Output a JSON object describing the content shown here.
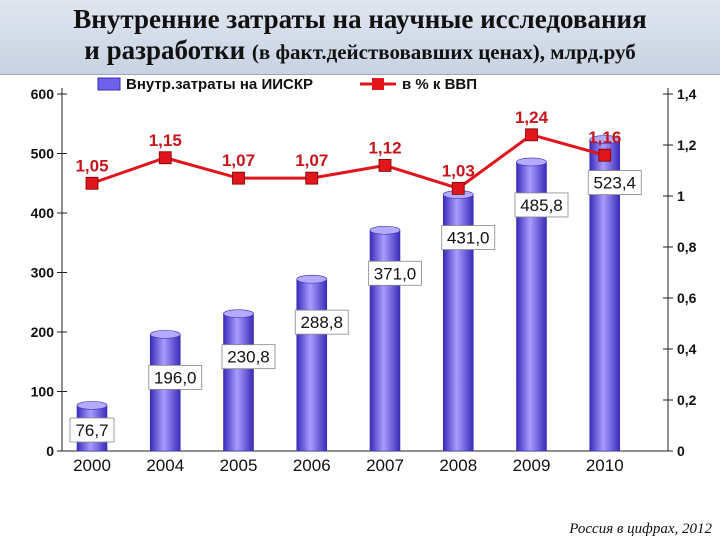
{
  "title": {
    "line1": "Внутренние затраты на научные исследования",
    "line2_main": "и разработки",
    "line2_sub": "(в факт.действовавших ценах), млрд.руб"
  },
  "footer": "Россия в цифрах, 2012",
  "colors": {
    "bar": "#6f60ea",
    "bar_dark": "#3a2cb8",
    "line": "#e0161c",
    "marker": "#e0161c"
  },
  "chart_data": {
    "type": "bar",
    "categories": [
      "2000",
      "2004",
      "2005",
      "2006",
      "2007",
      "2008",
      "2009",
      "2010"
    ],
    "series": [
      {
        "name": "Внутр.затраты на ИИСКР",
        "type": "bar",
        "axis": "left",
        "values": [
          76.7,
          196.0,
          230.8,
          288.8,
          371.0,
          431.0,
          485.8,
          523.4
        ],
        "labels": [
          "76,7",
          "196,0",
          "230,8",
          "288,8",
          "371,0",
          "431,0",
          "485,8",
          "523,4"
        ]
      },
      {
        "name": "в % к ВВП",
        "type": "line",
        "axis": "right",
        "values": [
          1.05,
          1.15,
          1.07,
          1.07,
          1.12,
          1.03,
          1.24,
          1.16
        ],
        "labels": [
          "1,05",
          "1,15",
          "1,07",
          "1,07",
          "1,12",
          "1,03",
          "1,24",
          "1,16"
        ]
      }
    ],
    "y_left": {
      "ylim": [
        0,
        600
      ],
      "ticks": [
        "0",
        "100",
        "200",
        "300",
        "400",
        "500",
        "600"
      ]
    },
    "y_right": {
      "ylim": [
        0,
        1.4
      ],
      "ticks": [
        "0",
        "0,2",
        "0,4",
        "0,6",
        "0,8",
        "1",
        "1,2",
        "1,4"
      ]
    },
    "legend": "top-center",
    "grid": false
  }
}
